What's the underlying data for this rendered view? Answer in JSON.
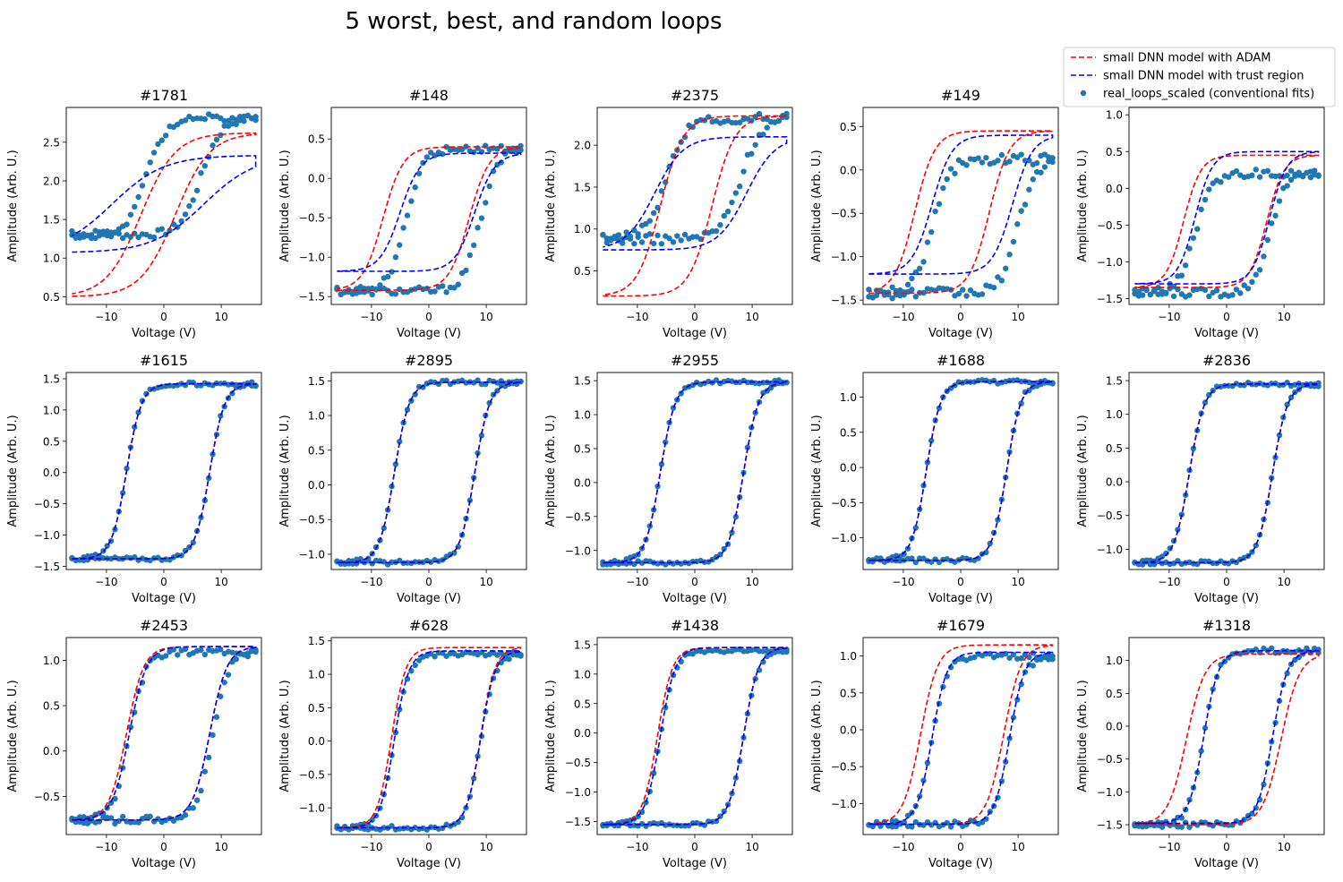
{
  "figure": {
    "title": "5 worst, best, and random loops",
    "legend": [
      {
        "label": "small DNN model with ADAM",
        "style": "dashed-line",
        "color": "#ff0000"
      },
      {
        "label": "small DNN model with trust region",
        "style": "dashed-line",
        "color": "#0000ff"
      },
      {
        "label": "real_loops_scaled (conventional fits)",
        "style": "marker",
        "color": "#1f77b4"
      }
    ],
    "legend_placement": "top-right"
  },
  "chart_data": [
    {
      "type": "line",
      "title": "#1781",
      "xlabel": "Voltage (V)",
      "ylabel": "Amplitude (Arb. U.)",
      "xlim": [
        -17,
        17
      ],
      "ylim": [
        0.4,
        2.95
      ],
      "xticks": [
        -10,
        0,
        10
      ],
      "yticks": [
        0.5,
        1.0,
        1.5,
        2.0,
        2.5
      ],
      "loop": {
        "adam": {
          "bottom": 0.5,
          "top": 2.62,
          "vc_up": 2.0,
          "vc_down": -4.0,
          "w": 6.0
        },
        "trust": {
          "bottom": 1.07,
          "top": 2.33,
          "vc_up": 7.0,
          "vc_down": -9.0,
          "w": 9.0
        },
        "real": {
          "bottom": 1.3,
          "top": 2.82,
          "vc_up": 6.5,
          "vc_down": -3.0,
          "w": 3.5,
          "noise": 0.05
        }
      }
    },
    {
      "type": "line",
      "title": "#148",
      "xlabel": "Voltage (V)",
      "ylabel": "Amplitude (Arb. U.)",
      "xlim": [
        -17,
        17
      ],
      "ylim": [
        -1.6,
        0.9
      ],
      "xticks": [
        -10,
        0,
        10
      ],
      "yticks": [
        -1.5,
        -1.0,
        -0.5,
        0.0,
        0.5
      ],
      "loop": {
        "adam": {
          "bottom": -1.42,
          "top": 0.4,
          "vc_up": 7.0,
          "vc_down": -8.0,
          "w": 3.5
        },
        "trust": {
          "bottom": -1.18,
          "top": 0.32,
          "vc_up": 8.0,
          "vc_down": -5.0,
          "w": 3.5
        },
        "real": {
          "bottom": -1.43,
          "top": 0.38,
          "vc_up": 9.0,
          "vc_down": -4.0,
          "w": 3.0,
          "noise": 0.05
        }
      }
    },
    {
      "type": "line",
      "title": "#2375",
      "xlabel": "Voltage (V)",
      "ylabel": "Amplitude (Arb. U.)",
      "xlim": [
        -17,
        17
      ],
      "ylim": [
        0.1,
        2.45
      ],
      "xticks": [
        -10,
        0,
        10
      ],
      "yticks": [
        0.5,
        1.0,
        1.5,
        2.0
      ],
      "loop": {
        "adam": {
          "bottom": 0.2,
          "top": 2.35,
          "vc_up": 3.0,
          "vc_down": -6.0,
          "w": 4.0
        },
        "trust": {
          "bottom": 0.75,
          "top": 2.1,
          "vc_up": 9.0,
          "vc_down": -7.0,
          "w": 5.0
        },
        "real": {
          "bottom": 0.88,
          "top": 2.32,
          "vc_up": 8.0,
          "vc_down": -5.0,
          "w": 3.5,
          "noise": 0.06
        }
      }
    },
    {
      "type": "line",
      "title": "#149",
      "xlabel": "Voltage (V)",
      "ylabel": "Amplitude (Arb. U.)",
      "xlim": [
        -17,
        17
      ],
      "ylim": [
        -1.55,
        0.72
      ],
      "xticks": [
        -10,
        0,
        10
      ],
      "yticks": [
        -1.5,
        -1.0,
        -0.5,
        0.0,
        0.5
      ],
      "loop": {
        "adam": {
          "bottom": -1.42,
          "top": 0.45,
          "vc_up": 5.0,
          "vc_down": -8.0,
          "w": 3.5
        },
        "trust": {
          "bottom": -1.2,
          "top": 0.4,
          "vc_up": 9.0,
          "vc_down": -5.0,
          "w": 3.5
        },
        "real": {
          "bottom": -1.42,
          "top": 0.12,
          "vc_up": 10.0,
          "vc_down": -5.0,
          "w": 3.0,
          "noise": 0.06
        }
      }
    },
    {
      "type": "line",
      "title": "",
      "xlabel": "Voltage (V)",
      "ylabel": "Amplitude (Arb. U.)",
      "xlim": [
        -17,
        17
      ],
      "ylim": [
        -1.58,
        1.1
      ],
      "xticks": [
        -10,
        0,
        10
      ],
      "yticks": [
        -1.5,
        -1.0,
        -0.5,
        0.0,
        0.5,
        1.0
      ],
      "loop": {
        "adam": {
          "bottom": -1.35,
          "top": 0.45,
          "vc_up": 7.0,
          "vc_down": -7.5,
          "w": 3.0
        },
        "trust": {
          "bottom": -1.3,
          "top": 0.5,
          "vc_up": 7.5,
          "vc_down": -5.5,
          "w": 3.0
        },
        "real": {
          "bottom": -1.42,
          "top": 0.2,
          "vc_up": 7.5,
          "vc_down": -5.5,
          "w": 2.8,
          "noise": 0.06
        }
      }
    },
    {
      "type": "line",
      "title": "#1615",
      "xlabel": "Voltage (V)",
      "ylabel": "Amplitude (Arb. U.)",
      "xlim": [
        -17,
        17
      ],
      "ylim": [
        -1.55,
        1.6
      ],
      "xticks": [
        -10,
        0,
        10
      ],
      "yticks": [
        -1.5,
        -1.0,
        -0.5,
        0.0,
        0.5,
        1.0,
        1.5
      ],
      "loop": {
        "adam": {
          "bottom": -1.38,
          "top": 1.42,
          "vc_up": 8.0,
          "vc_down": -6.5,
          "w": 2.6
        },
        "trust": {
          "bottom": -1.38,
          "top": 1.42,
          "vc_up": 8.0,
          "vc_down": -6.5,
          "w": 2.6
        },
        "real": {
          "bottom": -1.38,
          "top": 1.42,
          "vc_up": 8.0,
          "vc_down": -6.5,
          "w": 2.6,
          "noise": 0.03
        }
      }
    },
    {
      "type": "line",
      "title": "#2895",
      "xlabel": "Voltage (V)",
      "ylabel": "Amplitude (Arb. U.)",
      "xlim": [
        -17,
        17
      ],
      "ylim": [
        -1.22,
        1.62
      ],
      "xticks": [
        -10,
        0,
        10
      ],
      "yticks": [
        -1.0,
        -0.5,
        0.0,
        0.5,
        1.0,
        1.5
      ],
      "loop": {
        "adam": {
          "bottom": -1.12,
          "top": 1.48,
          "vc_up": 8.0,
          "vc_down": -6.0,
          "w": 2.6
        },
        "trust": {
          "bottom": -1.12,
          "top": 1.48,
          "vc_up": 8.0,
          "vc_down": -6.0,
          "w": 2.6
        },
        "real": {
          "bottom": -1.12,
          "top": 1.48,
          "vc_up": 8.0,
          "vc_down": -6.0,
          "w": 2.6,
          "noise": 0.03
        }
      }
    },
    {
      "type": "line",
      "title": "#2955",
      "xlabel": "Voltage (V)",
      "ylabel": "Amplitude (Arb. U.)",
      "xlim": [
        -17,
        17
      ],
      "ylim": [
        -1.28,
        1.62
      ],
      "xticks": [
        -10,
        0,
        10
      ],
      "yticks": [
        -1.0,
        -0.5,
        0.0,
        0.5,
        1.0,
        1.5
      ],
      "loop": {
        "adam": {
          "bottom": -1.18,
          "top": 1.48,
          "vc_up": 8.5,
          "vc_down": -6.0,
          "w": 2.6
        },
        "trust": {
          "bottom": -1.18,
          "top": 1.48,
          "vc_up": 8.5,
          "vc_down": -6.0,
          "w": 2.6
        },
        "real": {
          "bottom": -1.18,
          "top": 1.48,
          "vc_up": 8.5,
          "vc_down": -6.0,
          "w": 2.6,
          "noise": 0.03
        }
      }
    },
    {
      "type": "line",
      "title": "#1688",
      "xlabel": "Voltage (V)",
      "ylabel": "Amplitude (Arb. U.)",
      "xlim": [
        -17,
        17
      ],
      "ylim": [
        -1.45,
        1.35
      ],
      "xticks": [
        -10,
        0,
        10
      ],
      "yticks": [
        -1.0,
        -0.5,
        0.0,
        0.5,
        1.0
      ],
      "loop": {
        "adam": {
          "bottom": -1.32,
          "top": 1.22,
          "vc_up": 8.0,
          "vc_down": -6.0,
          "w": 2.5
        },
        "trust": {
          "bottom": -1.32,
          "top": 1.22,
          "vc_up": 8.0,
          "vc_down": -6.0,
          "w": 2.5
        },
        "real": {
          "bottom": -1.32,
          "top": 1.22,
          "vc_up": 8.0,
          "vc_down": -6.0,
          "w": 2.5,
          "noise": 0.03
        }
      }
    },
    {
      "type": "line",
      "title": "#2836",
      "xlabel": "Voltage (V)",
      "ylabel": "Amplitude (Arb. U.)",
      "xlim": [
        -17,
        17
      ],
      "ylim": [
        -1.3,
        1.62
      ],
      "xticks": [
        -10,
        0,
        10
      ],
      "yticks": [
        -1.0,
        -0.5,
        0.0,
        0.5,
        1.0,
        1.5
      ],
      "loop": {
        "adam": {
          "bottom": -1.2,
          "top": 1.45,
          "vc_up": 8.0,
          "vc_down": -6.5,
          "w": 2.6
        },
        "trust": {
          "bottom": -1.2,
          "top": 1.45,
          "vc_up": 8.0,
          "vc_down": -6.5,
          "w": 2.6
        },
        "real": {
          "bottom": -1.2,
          "top": 1.45,
          "vc_up": 8.0,
          "vc_down": -6.5,
          "w": 2.6,
          "noise": 0.03
        }
      }
    },
    {
      "type": "line",
      "title": "#2453",
      "xlabel": "Voltage (V)",
      "ylabel": "Amplitude (Arb. U.)",
      "xlim": [
        -17,
        17
      ],
      "ylim": [
        -0.92,
        1.25
      ],
      "xticks": [
        -10,
        0,
        10
      ],
      "yticks": [
        -0.5,
        0.0,
        0.5,
        1.0
      ],
      "loop": {
        "adam": {
          "bottom": -0.76,
          "top": 1.15,
          "vc_up": 8.0,
          "vc_down": -6.5,
          "w": 3.0
        },
        "trust": {
          "bottom": -0.76,
          "top": 1.15,
          "vc_up": 8.0,
          "vc_down": -6.0,
          "w": 3.0
        },
        "real": {
          "bottom": -0.76,
          "top": 1.1,
          "vc_up": 8.5,
          "vc_down": -6.0,
          "w": 2.8,
          "noise": 0.04
        }
      }
    },
    {
      "type": "line",
      "title": "#628",
      "xlabel": "Voltage (V)",
      "ylabel": "Amplitude (Arb. U.)",
      "xlim": [
        -17,
        17
      ],
      "ylim": [
        -1.4,
        1.55
      ],
      "xticks": [
        -10,
        0,
        10
      ],
      "yticks": [
        -1.0,
        -0.5,
        0.0,
        0.5,
        1.0,
        1.5
      ],
      "loop": {
        "adam": {
          "bottom": -1.3,
          "top": 1.4,
          "vc_up": 9.0,
          "vc_down": -6.5,
          "w": 2.5
        },
        "trust": {
          "bottom": -1.3,
          "top": 1.35,
          "vc_up": 9.0,
          "vc_down": -6.0,
          "w": 2.5
        },
        "real": {
          "bottom": -1.3,
          "top": 1.3,
          "vc_up": 9.0,
          "vc_down": -6.0,
          "w": 2.5,
          "noise": 0.03
        }
      }
    },
    {
      "type": "line",
      "title": "#1438",
      "xlabel": "Voltage (V)",
      "ylabel": "Amplitude (Arb. U.)",
      "xlim": [
        -17,
        17
      ],
      "ylim": [
        -1.72,
        1.62
      ],
      "xticks": [
        -10,
        0,
        10
      ],
      "yticks": [
        -1.5,
        -1.0,
        -0.5,
        0.0,
        0.5,
        1.0,
        1.5
      ],
      "loop": {
        "adam": {
          "bottom": -1.55,
          "top": 1.45,
          "vc_up": 8.5,
          "vc_down": -6.5,
          "w": 2.6
        },
        "trust": {
          "bottom": -1.55,
          "top": 1.45,
          "vc_up": 8.5,
          "vc_down": -6.0,
          "w": 2.6
        },
        "real": {
          "bottom": -1.55,
          "top": 1.4,
          "vc_up": 8.5,
          "vc_down": -6.0,
          "w": 2.6,
          "noise": 0.03
        }
      }
    },
    {
      "type": "line",
      "title": "#1679",
      "xlabel": "Voltage (V)",
      "ylabel": "Amplitude (Arb. U.)",
      "xlim": [
        -17,
        17
      ],
      "ylim": [
        -1.42,
        1.25
      ],
      "xticks": [
        -10,
        0,
        10
      ],
      "yticks": [
        -1.0,
        -0.5,
        0.0,
        0.5,
        1.0
      ],
      "loop": {
        "adam": {
          "bottom": -1.28,
          "top": 1.15,
          "vc_up": 7.5,
          "vc_down": -7.0,
          "w": 3.0
        },
        "trust": {
          "bottom": -1.28,
          "top": 1.05,
          "vc_up": 8.5,
          "vc_down": -5.0,
          "w": 2.6
        },
        "real": {
          "bottom": -1.28,
          "top": 1.0,
          "vc_up": 8.5,
          "vc_down": -5.0,
          "w": 2.6,
          "noise": 0.04
        }
      }
    },
    {
      "type": "line",
      "title": "#1318",
      "xlabel": "Voltage (V)",
      "ylabel": "Amplitude (Arb. U.)",
      "xlim": [
        -17,
        17
      ],
      "ylim": [
        -1.65,
        1.35
      ],
      "xticks": [
        -10,
        0,
        10
      ],
      "yticks": [
        -1.5,
        -1.0,
        -0.5,
        0.0,
        0.5,
        1.0
      ],
      "loop": {
        "adam": {
          "bottom": -1.5,
          "top": 1.1,
          "vc_up": 9.5,
          "vc_down": -7.0,
          "w": 3.2
        },
        "trust": {
          "bottom": -1.48,
          "top": 1.15,
          "vc_up": 8.0,
          "vc_down": -4.0,
          "w": 2.6
        },
        "real": {
          "bottom": -1.5,
          "top": 1.15,
          "vc_up": 8.0,
          "vc_down": -4.0,
          "w": 2.6,
          "noise": 0.04
        }
      }
    }
  ]
}
